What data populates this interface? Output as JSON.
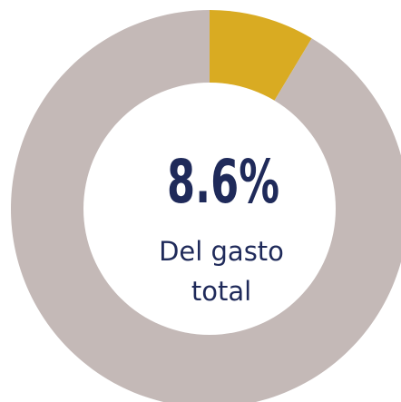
{
  "chart_data": {
    "type": "donut",
    "values": [
      8.6,
      91.4
    ],
    "value_labels": [
      "8.6%",
      null
    ],
    "colors": [
      "#d9ab22",
      "#c4b9b7"
    ],
    "subtitle_lines": [
      "Del gasto",
      "total"
    ]
  }
}
